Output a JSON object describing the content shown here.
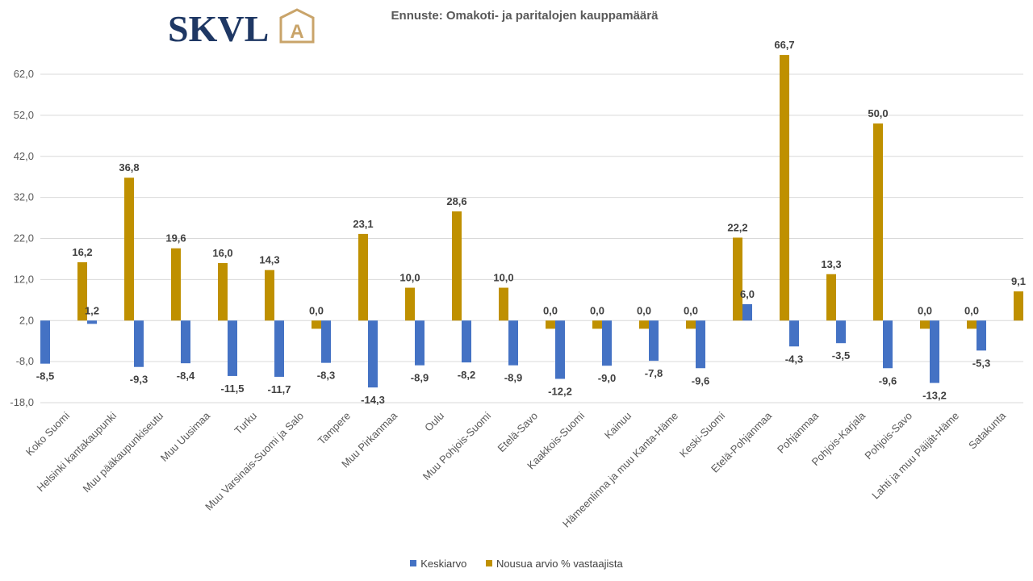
{
  "logo": {
    "text": "SKVL",
    "mark": "A",
    "color": "#1f3864",
    "accent": "#c9a46a"
  },
  "chart_data": {
    "type": "bar",
    "title": "Ennuste: Omakoti- ja paritalojen kauppamäärä",
    "xlabel": "",
    "ylabel": "",
    "ylim": [
      -18,
      68
    ],
    "yticks": [
      -18,
      -8,
      2,
      12,
      22,
      32,
      42,
      52,
      62
    ],
    "ytick_labels": [
      "-18,0",
      "-8,0",
      "2,0",
      "12,0",
      "22,0",
      "32,0",
      "42,0",
      "52,0",
      "62,0"
    ],
    "grid": true,
    "legend_position": "bottom",
    "categories": [
      "Koko Suomi",
      "Helsinki kantakaupunki",
      "Muu pääkaupunkiseutu",
      "Muu Uusimaa",
      "Turku",
      "Muu Varsinais-Suomi ja Salo",
      "Tampere",
      "Muu Pirkanmaa",
      "Oulu",
      "Muu Pohjois-Suomi",
      "Etelä-Savo",
      "Kaakkois-Suomi",
      "Kainuu",
      "Hämeenlinna ja muu Kanta-Häme",
      "Keski-Suomi",
      "Etelä-Pohjanmaa",
      "Pohjanmaa",
      "Pohjois-Karjala",
      "Pohjois-Savo",
      "Lahti ja muu Päijät-Häme",
      "Satakunta"
    ],
    "series": [
      {
        "name": "Keskiarvo",
        "color": "#4472c4",
        "values": [
          -8.5,
          1.2,
          -9.3,
          -8.4,
          -11.5,
          -11.7,
          -8.3,
          -14.3,
          -8.9,
          -8.2,
          -8.9,
          -12.2,
          -9.0,
          -7.8,
          -9.6,
          6.0,
          -4.3,
          -3.5,
          -9.6,
          -13.2,
          -5.3
        ],
        "labels": [
          "-8,5",
          "1,2",
          "-9,3",
          "-8,4",
          "-11,5",
          "-11,7",
          "-8,3",
          "-14,3",
          "-8,9",
          "-8,2",
          "-8,9",
          "-12,2",
          "-9,0",
          "-7,8",
          "-9,6",
          "6,0",
          "-4,3",
          "-3,5",
          "-9,6",
          "-13,2",
          "-5,3"
        ]
      },
      {
        "name": "Nousua arvio % vastaajista",
        "color": "#bf9000",
        "values": [
          16.2,
          36.8,
          19.6,
          16.0,
          14.3,
          0.0,
          23.1,
          10.0,
          28.6,
          10.0,
          0.0,
          0.0,
          0.0,
          0.0,
          22.2,
          66.7,
          13.3,
          50.0,
          0.0,
          0.0,
          9.1
        ],
        "labels": [
          "16,2",
          "36,8",
          "19,6",
          "16,0",
          "14,3",
          "0,0",
          "23,1",
          "10,0",
          "28,6",
          "10,0",
          "0,0",
          "0,0",
          "0,0",
          "0,0",
          "22,2",
          "66,7",
          "13,3",
          "50,0",
          "0,0",
          "0,0",
          "9,1"
        ]
      }
    ]
  }
}
